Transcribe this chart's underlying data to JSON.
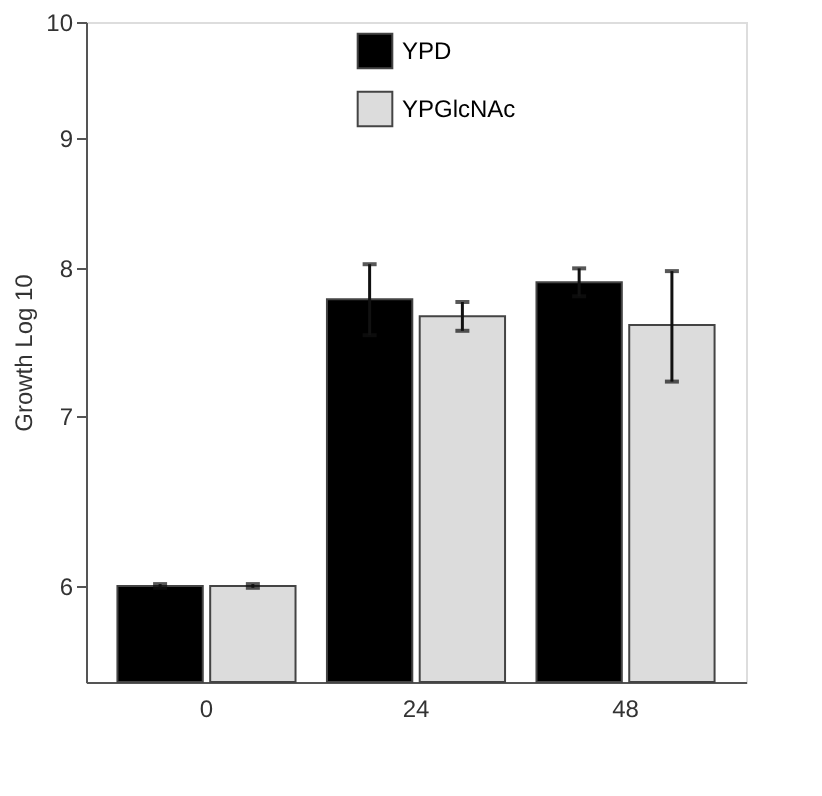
{
  "chart_data": {
    "type": "bar",
    "ylabel": "Growth Log 10",
    "categories": [
      "0",
      "24",
      "48"
    ],
    "series": [
      {
        "name": "YPD",
        "color": "#000000",
        "values": [
          6.0,
          7.78,
          7.9
        ],
        "errors": [
          0.01,
          0.25,
          0.1
        ]
      },
      {
        "name": "YPGlcNAc",
        "color": "#dcdcdc",
        "values": [
          6.0,
          7.66,
          7.6
        ],
        "errors": [
          0.01,
          0.1,
          0.38
        ]
      }
    ],
    "log": "y",
    "ylim": [
      5.5,
      10
    ],
    "yticks": [
      6,
      7,
      8,
      9,
      10
    ],
    "grid": false,
    "legend": "top"
  }
}
